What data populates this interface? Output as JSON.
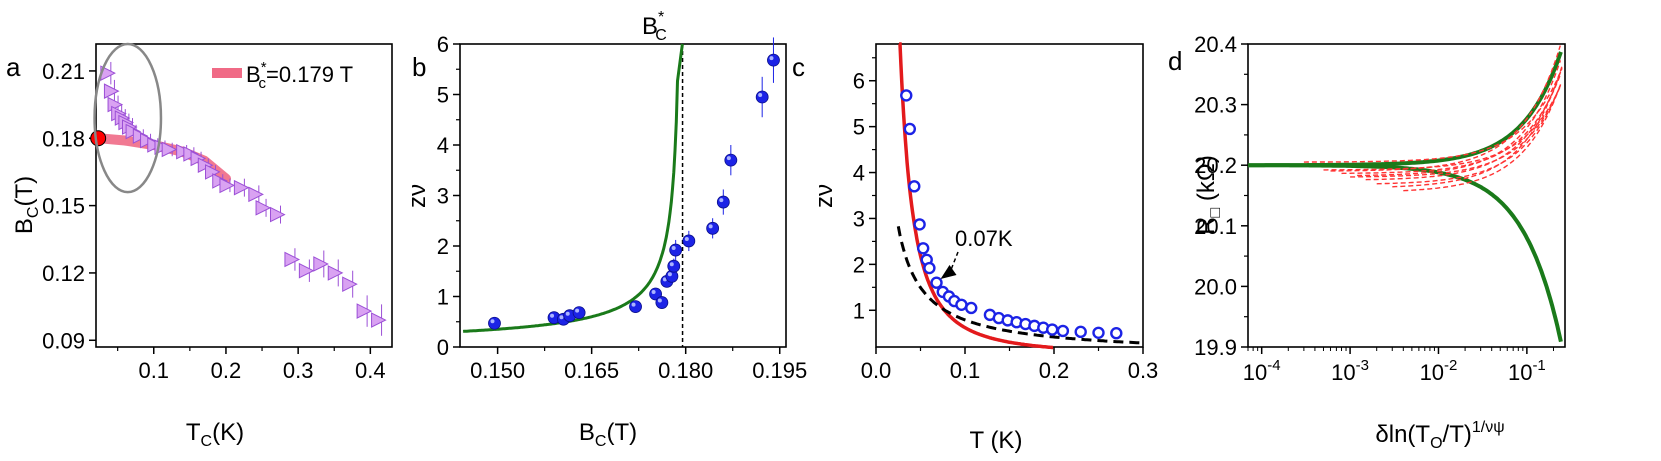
{
  "chart_data": [
    {
      "panel": "a",
      "type": "scatter",
      "xlabel": "T",
      "xlabel_sub": "C",
      "xlabel_tail": "(K)",
      "ylabel": "B",
      "ylabel_sub": "C",
      "ylabel_tail": "(T)",
      "xlim": [
        0.02,
        0.43
      ],
      "ylim": [
        0.087,
        0.222
      ],
      "xticks": [
        "0.1",
        "0.2",
        "0.3",
        "0.4"
      ],
      "yticks": [
        "0.09",
        "0.12",
        "0.15",
        "0.18",
        "0.21"
      ],
      "legend": {
        "prefix": "B",
        "sub": "c",
        "sup": "*",
        "suffix": "=0.179 T",
        "position": "top-right"
      },
      "colors": {
        "points": "#d9a2f2",
        "point_edge": "#9b4fd6",
        "fit": "#f06a86",
        "marker": "#ff0000"
      },
      "points": [
        [
          0.035,
          0.209,
          0.005
        ],
        [
          0.04,
          0.201,
          0.005
        ],
        [
          0.045,
          0.195,
          0.004
        ],
        [
          0.05,
          0.191,
          0.004
        ],
        [
          0.055,
          0.189,
          0.004
        ],
        [
          0.06,
          0.187,
          0.004
        ],
        [
          0.065,
          0.185,
          0.004
        ],
        [
          0.07,
          0.183,
          0.003
        ],
        [
          0.08,
          0.181,
          0.003
        ],
        [
          0.09,
          0.179,
          0.003
        ],
        [
          0.1,
          0.177,
          0.003
        ],
        [
          0.11,
          0.176,
          0.003
        ],
        [
          0.12,
          0.175,
          0.003
        ],
        [
          0.14,
          0.174,
          0.003
        ],
        [
          0.15,
          0.173,
          0.003
        ],
        [
          0.16,
          0.171,
          0.003
        ],
        [
          0.17,
          0.168,
          0.003
        ],
        [
          0.18,
          0.165,
          0.003
        ],
        [
          0.19,
          0.161,
          0.003
        ],
        [
          0.2,
          0.159,
          0.003
        ],
        [
          0.22,
          0.158,
          0.004
        ],
        [
          0.24,
          0.155,
          0.004
        ],
        [
          0.25,
          0.149,
          0.004
        ],
        [
          0.27,
          0.146,
          0.004
        ],
        [
          0.29,
          0.126,
          0.005
        ],
        [
          0.31,
          0.121,
          0.005
        ],
        [
          0.33,
          0.124,
          0.006
        ],
        [
          0.35,
          0.12,
          0.006
        ],
        [
          0.37,
          0.115,
          0.006
        ],
        [
          0.39,
          0.103,
          0.007
        ],
        [
          0.41,
          0.099,
          0.007
        ]
      ],
      "fit_line": [
        [
          0.025,
          0.18
        ],
        [
          0.06,
          0.179
        ],
        [
          0.1,
          0.177
        ],
        [
          0.14,
          0.174
        ],
        [
          0.17,
          0.17
        ],
        [
          0.2,
          0.162
        ]
      ],
      "intercept_point": [
        0.023,
        0.18
      ],
      "ellipse": {
        "cx": 0.064,
        "cy": 0.189,
        "rx": 0.046,
        "ry": 0.033,
        "color": "#888888"
      }
    },
    {
      "panel": "b",
      "type": "scatter",
      "xlabel": "B",
      "xlabel_sub": "C",
      "xlabel_tail": "(T)",
      "ylabel": "zν",
      "xlim": [
        0.144,
        0.196
      ],
      "ylim": [
        0,
        6
      ],
      "xticks": [
        "0.150",
        "0.165",
        "0.180",
        "0.195"
      ],
      "yticks": [
        "0",
        "1",
        "2",
        "3",
        "4",
        "5",
        "6"
      ],
      "top_label": {
        "prefix": "B",
        "sub": "C",
        "sup": "*"
      },
      "dashed_x": 0.1795,
      "colors": {
        "points": "#1c23e6",
        "fit": "#1a7a1a"
      },
      "points": [
        [
          0.1495,
          0.47,
          0.05
        ],
        [
          0.159,
          0.58,
          0.05
        ],
        [
          0.1605,
          0.55,
          0.05
        ],
        [
          0.1615,
          0.62,
          0.05
        ],
        [
          0.163,
          0.68,
          0.05
        ],
        [
          0.172,
          0.8,
          0.08
        ],
        [
          0.1752,
          1.05,
          0.1
        ],
        [
          0.1762,
          0.88,
          0.1
        ],
        [
          0.177,
          1.3,
          0.12
        ],
        [
          0.1778,
          1.4,
          0.15
        ],
        [
          0.1781,
          1.6,
          0.15
        ],
        [
          0.1784,
          1.92,
          0.2
        ],
        [
          0.1805,
          2.1,
          0.2
        ],
        [
          0.1843,
          2.35,
          0.2
        ],
        [
          0.186,
          2.87,
          0.25
        ],
        [
          0.1872,
          3.7,
          0.3
        ],
        [
          0.1922,
          4.95,
          0.4
        ],
        [
          0.194,
          5.68,
          0.45
        ]
      ],
      "fit_curve": {
        "a": 0.32,
        "c": 0.1795,
        "p": 0.75
      }
    },
    {
      "panel": "c",
      "type": "scatter",
      "xlabel": "T (K)",
      "ylabel": "zν",
      "xlim": [
        0,
        0.3
      ],
      "ylim": [
        0.2,
        6.8
      ],
      "xticks": [
        "0.0",
        "0.1",
        "0.2",
        "0.3"
      ],
      "yticks": [
        "1",
        "2",
        "3",
        "4",
        "5",
        "6"
      ],
      "annotation": "0.07K",
      "annotation_target": [
        0.068,
        1.55
      ],
      "colors": {
        "points": "#1c23e6",
        "red_fit": "#e31a1c",
        "dashed_fit": "#000000"
      },
      "points": [
        [
          0.034,
          5.68
        ],
        [
          0.038,
          4.95
        ],
        [
          0.043,
          3.7
        ],
        [
          0.049,
          2.87
        ],
        [
          0.053,
          2.35
        ],
        [
          0.057,
          2.1
        ],
        [
          0.06,
          1.92
        ],
        [
          0.068,
          1.6
        ],
        [
          0.075,
          1.4
        ],
        [
          0.082,
          1.3
        ],
        [
          0.088,
          1.2
        ],
        [
          0.096,
          1.12
        ],
        [
          0.107,
          1.05
        ],
        [
          0.128,
          0.9
        ],
        [
          0.138,
          0.83
        ],
        [
          0.148,
          0.78
        ],
        [
          0.158,
          0.74
        ],
        [
          0.168,
          0.7
        ],
        [
          0.178,
          0.66
        ],
        [
          0.188,
          0.62
        ],
        [
          0.198,
          0.58
        ],
        [
          0.21,
          0.55
        ],
        [
          0.23,
          0.53
        ],
        [
          0.25,
          0.51
        ],
        [
          0.27,
          0.5
        ]
      ],
      "red_curve": {
        "a": 0.2,
        "p": 0.965,
        "x0": 0.018,
        "x1": 0.2
      },
      "dashed_curve": {
        "a": 0.1,
        "p": 0.95,
        "x0": 0.025,
        "x1": 0.3
      }
    },
    {
      "panel": "d",
      "type": "line",
      "xlabel": "δln(T",
      "xlabel_sub": "O",
      "xlabel_mid": "/T)",
      "xlabel_sup": "1/νψ",
      "ylabel": "R",
      "ylabel_sub": "□",
      "ylabel_tail": " (kΩ)",
      "xscale": "log",
      "xlim": [
        7e-05,
        0.27
      ],
      "ylim": [
        19.9,
        20.4
      ],
      "xticks": [
        {
          "base": "10",
          "exp": "-4"
        },
        {
          "base": "10",
          "exp": "-3"
        },
        {
          "base": "10",
          "exp": "-2"
        },
        {
          "base": "10",
          "exp": "-1"
        }
      ],
      "yticks": [
        "19.9",
        "20.0",
        "20.1",
        "20.2",
        "20.3",
        "20.4"
      ],
      "center": 20.2,
      "colors": {
        "master": "#1a7a1a",
        "data": "#ff3333"
      },
      "master_branches": {
        "k_upper": 0.77,
        "k_lower": 1.2,
        "x0": 7e-05,
        "x1": 0.25
      },
      "red_curves": [
        {
          "start": 0.0003,
          "offset": 0.005
        },
        {
          "start": 0.0005,
          "offset": -0.008
        },
        {
          "start": 0.0008,
          "offset": -0.014
        },
        {
          "start": 0.001,
          "offset": -0.02
        },
        {
          "start": 0.0015,
          "offset": -0.025
        },
        {
          "start": 0.002,
          "offset": -0.032
        },
        {
          "start": 0.003,
          "offset": -0.038
        },
        {
          "start": 0.004,
          "offset": -0.045
        },
        {
          "start": 0.0006,
          "offset": -0.01
        },
        {
          "start": 0.0012,
          "offset": -0.018
        }
      ]
    }
  ]
}
